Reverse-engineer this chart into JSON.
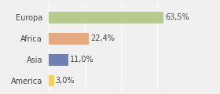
{
  "categories": [
    "Europa",
    "Africa",
    "Asia",
    "America"
  ],
  "values": [
    63.5,
    22.4,
    11.0,
    3.0
  ],
  "labels": [
    "63,5%",
    "22,4%",
    "11,0%",
    "3,0%"
  ],
  "bar_colors": [
    "#b5cc8e",
    "#e8a97e",
    "#7080b0",
    "#f0d060"
  ],
  "background_color": "#f0f0f0",
  "xlim": [
    0,
    80
  ],
  "bar_height": 0.55,
  "label_fontsize": 7,
  "tick_fontsize": 7,
  "text_color": "#444444"
}
